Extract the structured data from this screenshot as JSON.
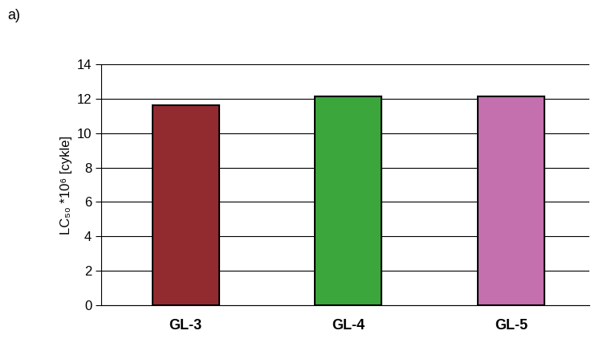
{
  "chart_data": {
    "type": "bar",
    "annotation": "a)",
    "y_label": "LC₅₀ *10⁶ [cykle]",
    "categories": [
      "GL-3",
      "GL-4",
      "GL-5"
    ],
    "values": [
      11.6,
      12.15,
      12.15
    ],
    "colors": [
      "#922b30",
      "#3aa63c",
      "#c46fae"
    ],
    "ylim": [
      0,
      14
    ],
    "yticks": [
      0,
      2,
      4,
      6,
      8,
      10,
      12,
      14
    ],
    "grid": true
  }
}
